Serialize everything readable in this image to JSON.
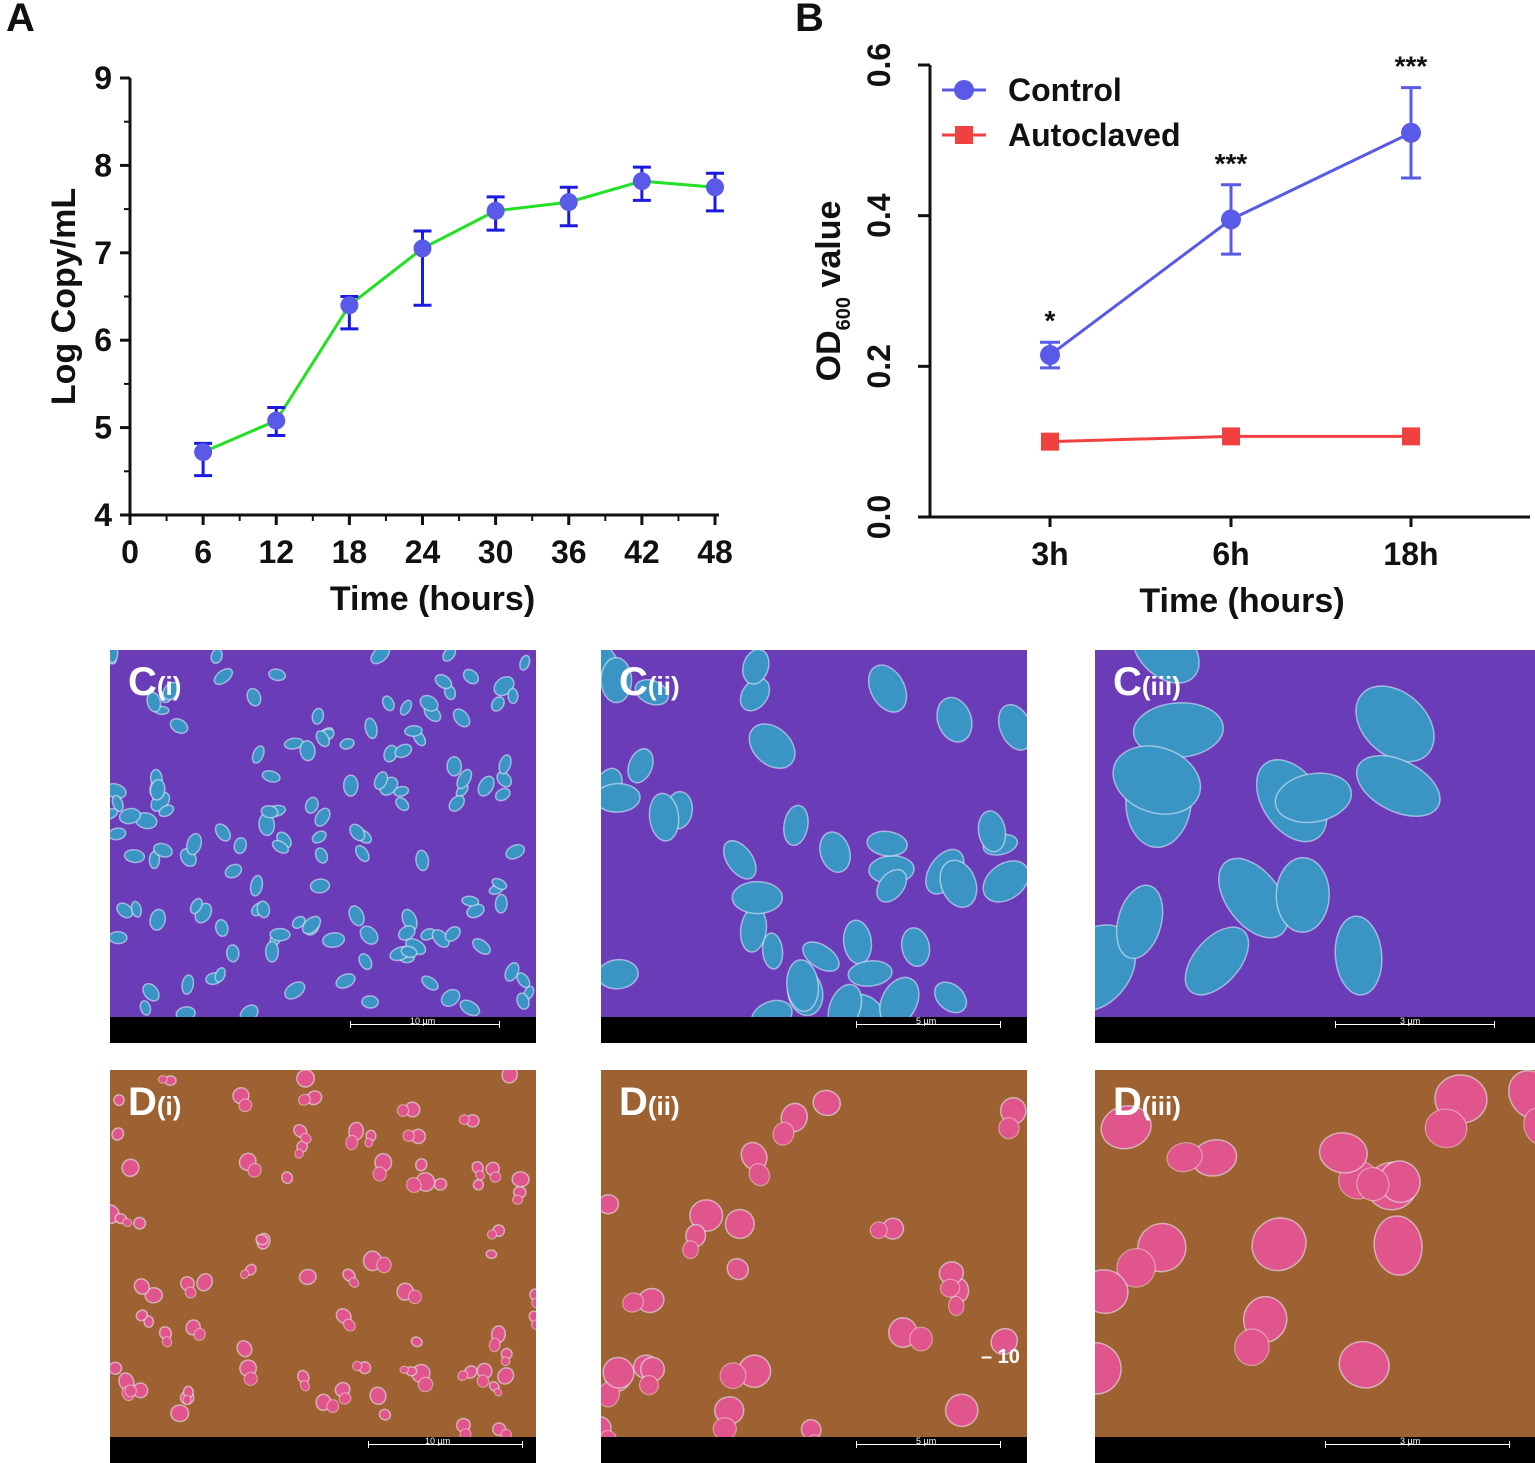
{
  "panels": {
    "a": "A",
    "b": "B",
    "c1": {
      "letter": "C",
      "sub": "(i)",
      "scale": "10 µm"
    },
    "c2": {
      "letter": "C",
      "sub": "(ii)",
      "scale": "5 µm"
    },
    "c3": {
      "letter": "C",
      "sub": "(iii)",
      "scale": "3 µm"
    },
    "d1": {
      "letter": "D",
      "sub": "(i)",
      "scale": "10 µm"
    },
    "d2": {
      "letter": "D",
      "sub": "(ii)",
      "scale": "5 µm",
      "overlay": "– 10"
    },
    "d3": {
      "letter": "D",
      "sub": "(iii)",
      "scale": "3 µm"
    }
  },
  "colors": {
    "line_a": "#22e022",
    "marker_a": "#5a5ae8",
    "error_a": "#1a1ae0",
    "control": "#5a5ae8",
    "autoclaved": "#f04040",
    "c_background": "#6a3cb8",
    "c_cells": "#3a94c4",
    "d_background": "#9e6232",
    "d_cells": "#e0558c"
  },
  "chart_data": [
    {
      "type": "line",
      "title": "",
      "xlabel": "Time (hours)",
      "ylabel": "Log Copy/mL",
      "xlim": [
        0,
        48
      ],
      "ylim": [
        4,
        9
      ],
      "xticks": [
        0,
        6,
        12,
        18,
        24,
        30,
        36,
        42,
        48
      ],
      "yticks": [
        4,
        5,
        6,
        7,
        8,
        9
      ],
      "x": [
        6,
        12,
        18,
        24,
        30,
        36,
        42,
        48
      ],
      "values": [
        4.72,
        5.08,
        6.4,
        7.05,
        7.48,
        7.58,
        7.82,
        7.75
      ],
      "err_low": [
        0.27,
        0.17,
        0.27,
        0.65,
        0.22,
        0.27,
        0.22,
        0.27
      ],
      "err_high": [
        0.1,
        0.15,
        0.1,
        0.2,
        0.16,
        0.17,
        0.16,
        0.16
      ]
    },
    {
      "type": "line",
      "title": "",
      "xlabel": "Time (hours)",
      "ylabel_main": "OD",
      "ylabel_sub": "600",
      "ylabel_tail": " value",
      "categories": [
        "3h",
        "6h",
        "18h"
      ],
      "ylim": [
        0,
        0.6
      ],
      "yticks": [
        "0.0",
        "0.2",
        "0.4",
        "0.6"
      ],
      "legend_position": "top-left",
      "series": [
        {
          "name": "Control",
          "values": [
            0.215,
            0.395,
            0.51
          ],
          "err": [
            0.017,
            0.046,
            0.06
          ],
          "significance": [
            "*",
            "***",
            "***"
          ]
        },
        {
          "name": "Autoclaved",
          "values": [
            0.1,
            0.107,
            0.107
          ],
          "err": [
            0,
            0,
            0
          ],
          "significance": [
            "",
            "",
            ""
          ]
        }
      ]
    }
  ]
}
